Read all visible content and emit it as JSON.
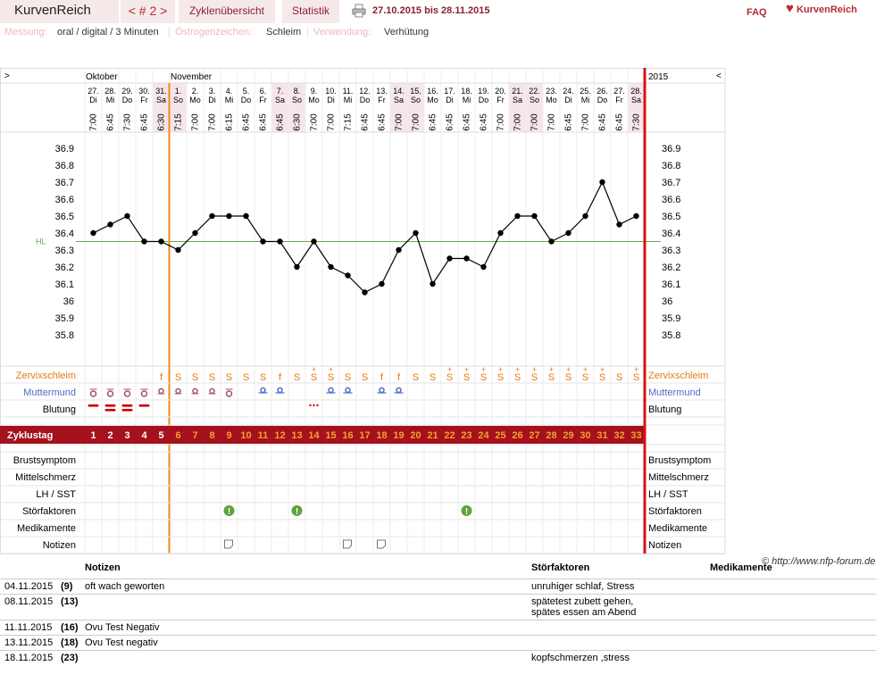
{
  "app": {
    "brand": "KurvenReich",
    "nav": "< # 2 >",
    "tabs": [
      "Zyklenübersicht",
      "Statistik"
    ],
    "date_range": "27.10.2015 bis 28.11.2015",
    "faq": "FAQ",
    "logo": "KurvenReich"
  },
  "info": {
    "messung_label": "Messung:",
    "messung_value": "oral / digital / 3 Minuten",
    "oestrogen_label": "Östrogenzeichen:",
    "oestrogen_value": "Schleim",
    "verwendung_label": "Verwendung:",
    "verwendung_value": "Verhütung"
  },
  "chart_data": {
    "type": "line",
    "expand_left": ">",
    "collapse_right": "<",
    "year": "2015",
    "month_labels": [
      {
        "label": "Oktober",
        "day_index": 0
      },
      {
        "label": "November",
        "day_index": 5
      }
    ],
    "dates": [
      "27.",
      "28.",
      "29.",
      "30.",
      "31.",
      "1.",
      "2.",
      "3.",
      "4.",
      "5.",
      "6.",
      "7.",
      "8.",
      "9.",
      "10.",
      "11.",
      "12.",
      "13.",
      "14.",
      "15.",
      "16.",
      "17.",
      "18.",
      "19.",
      "20.",
      "21.",
      "22.",
      "23.",
      "24.",
      "25.",
      "26.",
      "27.",
      "28."
    ],
    "weekdays": [
      "Di",
      "Mi",
      "Do",
      "Fr",
      "Sa",
      "So",
      "Mo",
      "Di",
      "Mi",
      "Do",
      "Fr",
      "Sa",
      "So",
      "Mo",
      "Di",
      "Mi",
      "Do",
      "Fr",
      "Sa",
      "So",
      "Mo",
      "Di",
      "Mi",
      "Do",
      "Fr",
      "Sa",
      "So",
      "Mo",
      "Di",
      "Mi",
      "Do",
      "Fr",
      "Sa"
    ],
    "weekend": [
      false,
      false,
      false,
      false,
      true,
      true,
      false,
      false,
      false,
      false,
      false,
      true,
      true,
      false,
      false,
      false,
      false,
      false,
      true,
      true,
      false,
      false,
      false,
      false,
      false,
      true,
      true,
      false,
      false,
      false,
      false,
      false,
      true
    ],
    "times": [
      "7:00",
      "6:45",
      "7:30",
      "6:45",
      "6:30",
      "7:15",
      "7:00",
      "7:00",
      "6:15",
      "6:45",
      "6:45",
      "6:45",
      "6:30",
      "7:00",
      "7:00",
      "7:15",
      "6:45",
      "6:45",
      "7:00",
      "7:00",
      "6:45",
      "6:45",
      "6:45",
      "6:45",
      "7:00",
      "7:00",
      "7:00",
      "7:00",
      "6:45",
      "7:00",
      "6:45",
      "6:45",
      "7:30"
    ],
    "temperatures": [
      36.4,
      36.45,
      36.5,
      36.35,
      36.35,
      36.3,
      36.4,
      36.5,
      36.5,
      36.5,
      36.35,
      36.35,
      36.2,
      36.35,
      36.2,
      36.15,
      36.05,
      36.1,
      36.3,
      36.4,
      36.1,
      36.25,
      36.25,
      36.2,
      36.4,
      36.5,
      36.5,
      36.35,
      36.4,
      36.5,
      36.7,
      36.45,
      36.5
    ],
    "y_ticks": [
      "36.9",
      "36.8",
      "36.7",
      "36.6",
      "36.5",
      "36.4",
      "36.3",
      "36.2",
      "36.1",
      "36",
      "35.9",
      "35.8"
    ],
    "ylim": [
      35.8,
      36.9
    ],
    "hl_label": "HL",
    "hl_value": 36.35,
    "cycle_start_index": 5,
    "row_labels": {
      "zervix": "Zervixschleim",
      "muttermund": "Muttermund",
      "blutung": "Blutung",
      "zyklustag": "Zyklustag",
      "brust": "Brustsymptom",
      "mittel": "Mittelschmerz",
      "lh": "LH / SST",
      "stoer": "Störfaktoren",
      "medi": "Medikamente",
      "notizen": "Notizen"
    },
    "zervix": [
      "",
      "",
      "",
      "",
      "f",
      "S",
      "S",
      "S",
      "S",
      "S",
      "S",
      "f",
      "S",
      "S+",
      "S+",
      "S",
      "S",
      "f",
      "f",
      "S",
      "S",
      "S+",
      "S+",
      "S+",
      "S+",
      "S+",
      "S+",
      "S+",
      "S+",
      "S+",
      "S+",
      "S",
      "S+"
    ],
    "muttermund": [
      "hard",
      "hard",
      "hard",
      "hard",
      "dot",
      "dot",
      "dot",
      "dot",
      "hard",
      "",
      "blue",
      "blue",
      "",
      "",
      "blue",
      "blue",
      "",
      "blue",
      "blue",
      "",
      "",
      "",
      "",
      "",
      "",
      "",
      "",
      "",
      "",
      "",
      "",
      "",
      ""
    ],
    "blutung": [
      "1",
      "2",
      "2",
      "1",
      "",
      "",
      "",
      "",
      "",
      "",
      "",
      "",
      "",
      "dots",
      "",
      "",
      "",
      "",
      "",
      "",
      "",
      "",
      "",
      "",
      "",
      "",
      "",
      "",
      "",
      "",
      "",
      "",
      ""
    ],
    "zyklustage_vor": [
      "1",
      "2",
      "3",
      "4",
      "5"
    ],
    "zyklustage": [
      "6",
      "7",
      "8",
      "9",
      "10",
      "11",
      "12",
      "13",
      "14",
      "15",
      "16",
      "17",
      "18",
      "19",
      "20",
      "21",
      "22",
      "23",
      "24",
      "25",
      "26",
      "27",
      "28",
      "29",
      "30",
      "31",
      "32",
      "33"
    ],
    "stoerfaktoren_days": [
      8,
      12,
      22
    ],
    "notizen_days": [
      8,
      15,
      17
    ]
  },
  "copyright": "© http://www.nfp-forum.de",
  "notes_table": {
    "headers": {
      "notizen": "Notizen",
      "stoer": "Störfaktoren",
      "medi": "Medikamente"
    },
    "rows": [
      {
        "date": "04.11.2015",
        "day": "(9)",
        "note": "oft wach geworten",
        "stoer": [
          "unruhiger schlaf, Stress"
        ]
      },
      {
        "date": "08.11.2015",
        "day": "(13)",
        "note": "",
        "stoer": [
          "spätetest zubett gehen,",
          "spätes essen am Abend"
        ]
      },
      {
        "date": "11.11.2015",
        "day": "(16)",
        "note": "Ovu Test Negativ",
        "stoer": []
      },
      {
        "date": "13.11.2015",
        "day": "(18)",
        "note": "Ovu Test negativ",
        "stoer": []
      },
      {
        "date": "18.11.2015",
        "day": "(23)",
        "note": "",
        "stoer": [
          "kopfschmerzen ,stress"
        ]
      }
    ]
  },
  "colors": {
    "accent": "#b52b36",
    "zyklustag_bar": "#a5111d",
    "cycle_line": "#f28a1a",
    "today_line": "#d61313",
    "hl_line": "#6aa84f",
    "zervix": "#e07d10",
    "muttermund": "#4e6bc6",
    "weekend": "#f6e6ea",
    "stoer": "#5fa33c"
  }
}
